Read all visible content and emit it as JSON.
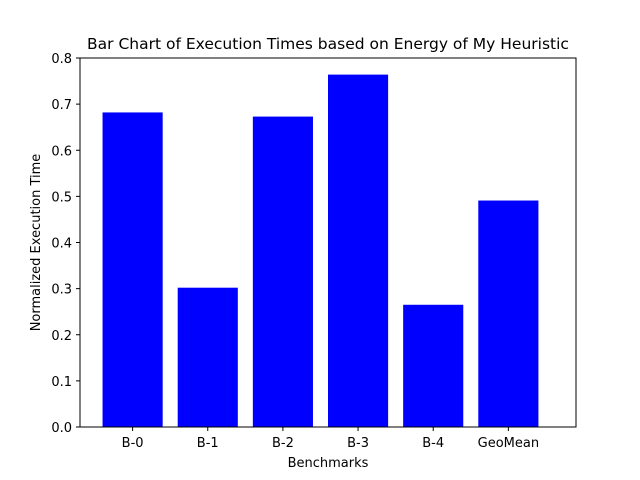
{
  "chart_data": {
    "type": "bar",
    "title": "Bar Chart of Execution Times based on Energy of My Heuristic",
    "xlabel": "Benchmarks",
    "ylabel": "Normalized Execution Time",
    "categories": [
      "B-0",
      "B-1",
      "B-2",
      "B-3",
      "B-4",
      "GeoMean"
    ],
    "values": [
      0.682,
      0.302,
      0.673,
      0.764,
      0.265,
      0.491
    ],
    "ylim": [
      0,
      0.8
    ],
    "yticks": [
      0.0,
      0.1,
      0.2,
      0.3,
      0.4,
      0.5,
      0.6,
      0.7,
      0.8
    ],
    "ytick_labels": [
      "0.0",
      "0.1",
      "0.2",
      "0.3",
      "0.4",
      "0.5",
      "0.6",
      "0.7",
      "0.8"
    ],
    "bar_color": "#0000ff",
    "grid": false,
    "legend": "none"
  }
}
